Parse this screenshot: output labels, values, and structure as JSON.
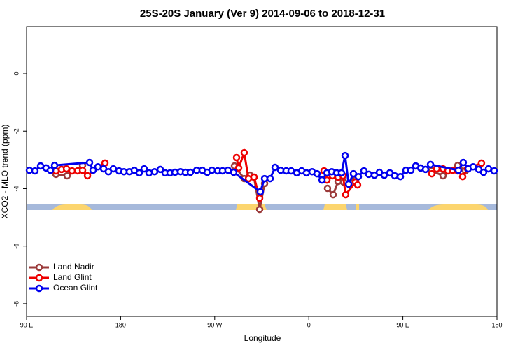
{
  "chart_data": {
    "type": "line",
    "title": "25S-20S January (Ver 9)   2014-09-06 to 2018-12-31",
    "x_label": "Longitude",
    "y_label": "XCO2 - MLO trend (ppm)",
    "xlim": [
      90,
      540
    ],
    "ylim": [
      -8.44,
      1.63
    ],
    "xticks": [
      {
        "value": 90,
        "label": "90 E"
      },
      180,
      {
        "value": 270,
        "label": "90 W"
      },
      {
        "value": 360,
        "label": "0"
      },
      {
        "value": 450,
        "label": "90 E"
      },
      {
        "value": 540,
        "label": "180"
      }
    ],
    "yticks": [
      0,
      -2,
      -4,
      -6,
      -8
    ],
    "legend": "bottom-left",
    "series": [
      {
        "name": "Land Nadir",
        "color": "#9b3a3a",
        "x": [
          118.1,
          128.8,
          143.6,
          null,
          288.9,
          298.2,
          303.6,
          307.6,
          313.0,
          317.7,
          null,
          377.9,
          383.3,
          388.0,
          393.3,
          404.7,
          null,
          477.7,
          488.4,
          502.5,
          509.8
        ],
        "values": [
          -3.5,
          -3.55,
          -3.19,
          null,
          -3.21,
          -3.65,
          -3.53,
          -3.6,
          -4.72,
          -3.82,
          null,
          -3.99,
          -4.21,
          -3.75,
          -3.77,
          -3.7,
          null,
          -3.38,
          -3.55,
          -3.19,
          -3.38
        ]
      },
      {
        "name": "Land Glint",
        "color": "#ee0000",
        "x": [
          118.1,
          123.5,
          128.2,
          133.5,
          138.9,
          143.6,
          148.3,
          165.0,
          null,
          290.9,
          292.9,
          298.2,
          302.3,
          307.6,
          313.0,
          null,
          374.6,
          377.3,
          382.6,
          388.0,
          392.7,
          395.3,
          404.7,
          406.7,
          null,
          477.7,
          482.4,
          488.4,
          493.1,
          497.8,
          502.5,
          507.2,
          511.9,
          525.2
        ],
        "values": [
          -3.38,
          -3.33,
          -3.31,
          -3.38,
          -3.38,
          -3.36,
          -3.55,
          -3.11,
          null,
          -2.92,
          -3.28,
          -2.75,
          -3.65,
          -3.6,
          -4.33,
          null,
          -3.38,
          -3.7,
          -3.55,
          -3.6,
          -3.55,
          -4.21,
          -3.77,
          -3.87,
          null,
          -3.48,
          -3.31,
          -3.31,
          -3.38,
          -3.36,
          -3.38,
          -3.58,
          -3.31,
          -3.11
        ]
      },
      {
        "name": "Ocean Glint",
        "color": "#0000ee",
        "x": [
          92.7,
          98.0,
          103.4,
          108.7,
          112.8,
          116.8,
          150.3,
          153.6,
          158.3,
          163.7,
          168.3,
          173.0,
          178.4,
          183.1,
          188.4,
          193.1,
          197.8,
          202.5,
          207.2,
          212.5,
          217.9,
          222.6,
          227.3,
          232.0,
          237.3,
          242.0,
          246.7,
          252.7,
          258.1,
          262.8,
          267.4,
          272.8,
          277.5,
          282.8,
          288.2,
          313.6,
          317.7,
          323.0,
          327.7,
          333.1,
          338.4,
          343.1,
          348.5,
          353.2,
          357.8,
          363.2,
          367.9,
          372.6,
          377.3,
          382.0,
          386.6,
          391.3,
          394.7,
          398.1,
          402.7,
          407.4,
          412.7,
          417.4,
          422.8,
          427.5,
          432.2,
          437.5,
          442.2,
          447.6,
          452.9,
          457.6,
          462.3,
          467.0,
          471.7,
          476.4,
          503.1,
          507.8,
          512.5,
          517.2,
          522.6,
          527.2,
          531.9,
          537.3
        ],
        "values": [
          -3.36,
          -3.38,
          -3.21,
          -3.28,
          -3.36,
          -3.19,
          -3.09,
          -3.36,
          -3.24,
          -3.31,
          -3.41,
          -3.31,
          -3.38,
          -3.41,
          -3.41,
          -3.36,
          -3.45,
          -3.31,
          -3.45,
          -3.41,
          -3.33,
          -3.45,
          -3.45,
          -3.43,
          -3.41,
          -3.43,
          -3.43,
          -3.36,
          -3.36,
          -3.43,
          -3.36,
          -3.38,
          -3.38,
          -3.36,
          -3.43,
          -4.11,
          -3.65,
          -3.65,
          -3.26,
          -3.36,
          -3.38,
          -3.38,
          -3.45,
          -3.38,
          -3.45,
          -3.41,
          -3.48,
          -3.7,
          -3.45,
          -3.41,
          -3.45,
          -3.45,
          -2.85,
          -3.84,
          -3.48,
          -3.58,
          -3.38,
          -3.5,
          -3.53,
          -3.43,
          -3.53,
          -3.45,
          -3.55,
          -3.58,
          -3.36,
          -3.36,
          -3.21,
          -3.28,
          -3.33,
          -3.16,
          -3.36,
          -3.09,
          -3.31,
          -3.24,
          -3.33,
          -3.43,
          -3.31,
          -3.38
        ]
      }
    ]
  }
}
